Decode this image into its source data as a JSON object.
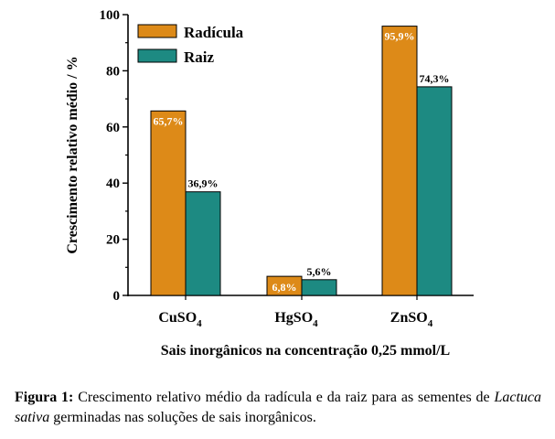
{
  "chart_data": {
    "type": "bar",
    "categories": [
      "CuSO4",
      "HgSO4",
      "ZnSO4"
    ],
    "series": [
      {
        "name": "Radícula",
        "values": [
          65.7,
          6.8,
          95.9
        ],
        "labels": [
          "65,7%",
          "6,8%",
          "95,9%"
        ]
      },
      {
        "name": "Raiz",
        "values": [
          36.9,
          5.6,
          74.3
        ],
        "labels": [
          "36,9%",
          "5,6%",
          "74,3%"
        ]
      }
    ],
    "xlabel": "Sais inorgânicos na concentração 0,25 mmol/L",
    "ylabel": "Crescimento relativo médio / %",
    "ylim": [
      0,
      100
    ],
    "yticks": [
      0,
      20,
      40,
      60,
      80,
      100
    ],
    "legend": "top-left",
    "grid": false
  },
  "colors": {
    "radicula": "#dd8a18",
    "raiz": "#1d8a82"
  },
  "caption": {
    "label": "Figura 1:",
    "text_before": "Crescimento relativo médio da radícula e da raiz para as sementes de ",
    "species": "Lactuca sativa",
    "text_after": " germinadas nas soluções de sais inorgânicos."
  }
}
